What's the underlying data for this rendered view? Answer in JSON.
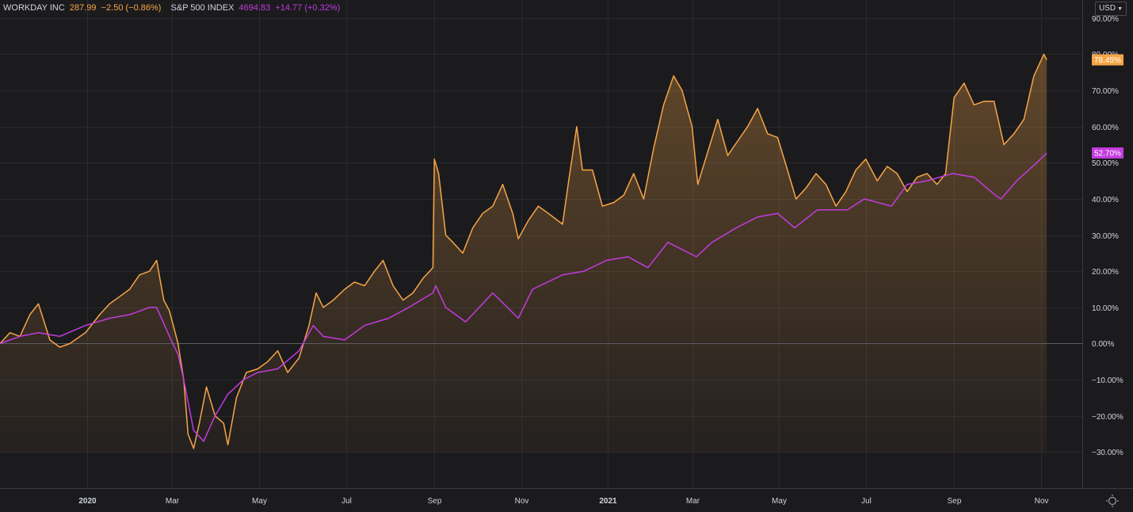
{
  "legend": {
    "symbol1": "WORKDAY INC",
    "price1": "287.99",
    "change1": "−2.50 (−0.86%)",
    "symbol2": "S&P 500 INDEX",
    "price2": "4694.83",
    "change2": "+14.77 (+0.32%)"
  },
  "currency": "USD",
  "colors": {
    "background": "#1b1b1e",
    "grid": "#2a2a2e",
    "workday": "#f7a545",
    "sp500": "#c43bdf",
    "text": "#d1d4dc"
  },
  "chart_data": {
    "type": "line",
    "ylim": [
      -40,
      95
    ],
    "yticks": [
      90,
      80,
      70,
      60,
      50,
      40,
      30,
      20,
      10,
      0,
      -10,
      -20,
      -30
    ],
    "ytick_labels": [
      "90.00%",
      "80.00%",
      "70.00%",
      "60.00%",
      "50.00%",
      "40.00%",
      "30.00%",
      "20.00%",
      "10.00%",
      "0.00%",
      "−10.00%",
      "−20.00%",
      "−30.00%"
    ],
    "xlim": [
      "2019-11-01",
      "2021-11-30"
    ],
    "xticks": [
      {
        "date": "2020-01-01",
        "label": "2020",
        "bold": true
      },
      {
        "date": "2020-03-01",
        "label": "Mar"
      },
      {
        "date": "2020-05-01",
        "label": "May"
      },
      {
        "date": "2020-07-01",
        "label": "Jul"
      },
      {
        "date": "2020-09-01",
        "label": "Sep"
      },
      {
        "date": "2020-11-01",
        "label": "Nov"
      },
      {
        "date": "2021-01-01",
        "label": "2021",
        "bold": true
      },
      {
        "date": "2021-03-01",
        "label": "Mar"
      },
      {
        "date": "2021-05-01",
        "label": "May"
      },
      {
        "date": "2021-07-01",
        "label": "Jul"
      },
      {
        "date": "2021-09-01",
        "label": "Sep"
      },
      {
        "date": "2021-11-01",
        "label": "Nov"
      }
    ],
    "series": [
      {
        "name": "WORKDAY INC",
        "color": "#f7a545",
        "area": true,
        "last_label": "78.45%",
        "points": [
          [
            "2019-11-01",
            0
          ],
          [
            "2019-11-08",
            3
          ],
          [
            "2019-11-15",
            2
          ],
          [
            "2019-11-22",
            8
          ],
          [
            "2019-11-28",
            11
          ],
          [
            "2019-12-06",
            1
          ],
          [
            "2019-12-13",
            -1
          ],
          [
            "2019-12-20",
            0
          ],
          [
            "2019-12-31",
            3
          ],
          [
            "2020-01-10",
            8
          ],
          [
            "2020-01-17",
            11
          ],
          [
            "2020-01-24",
            13
          ],
          [
            "2020-01-31",
            15
          ],
          [
            "2020-02-07",
            19
          ],
          [
            "2020-02-14",
            20
          ],
          [
            "2020-02-19",
            23
          ],
          [
            "2020-02-24",
            12
          ],
          [
            "2020-02-28",
            9
          ],
          [
            "2020-03-05",
            0
          ],
          [
            "2020-03-09",
            -10
          ],
          [
            "2020-03-12",
            -25
          ],
          [
            "2020-03-16",
            -29
          ],
          [
            "2020-03-20",
            -22
          ],
          [
            "2020-03-25",
            -12
          ],
          [
            "2020-03-31",
            -20
          ],
          [
            "2020-04-06",
            -22
          ],
          [
            "2020-04-09",
            -28
          ],
          [
            "2020-04-15",
            -15
          ],
          [
            "2020-04-22",
            -8
          ],
          [
            "2020-04-30",
            -7
          ],
          [
            "2020-05-07",
            -5
          ],
          [
            "2020-05-14",
            -2
          ],
          [
            "2020-05-21",
            -8
          ],
          [
            "2020-05-29",
            -4
          ],
          [
            "2020-06-05",
            5
          ],
          [
            "2020-06-10",
            14
          ],
          [
            "2020-06-15",
            10
          ],
          [
            "2020-06-22",
            12
          ],
          [
            "2020-06-30",
            15
          ],
          [
            "2020-07-07",
            17
          ],
          [
            "2020-07-14",
            16
          ],
          [
            "2020-07-21",
            20
          ],
          [
            "2020-07-27",
            23
          ],
          [
            "2020-08-03",
            16
          ],
          [
            "2020-08-10",
            12
          ],
          [
            "2020-08-17",
            14
          ],
          [
            "2020-08-24",
            18
          ],
          [
            "2020-08-31",
            21
          ],
          [
            "2020-09-01",
            51
          ],
          [
            "2020-09-04",
            47
          ],
          [
            "2020-09-09",
            30
          ],
          [
            "2020-09-14",
            28
          ],
          [
            "2020-09-21",
            25
          ],
          [
            "2020-09-28",
            32
          ],
          [
            "2020-10-05",
            36
          ],
          [
            "2020-10-12",
            38
          ],
          [
            "2020-10-19",
            44
          ],
          [
            "2020-10-26",
            36
          ],
          [
            "2020-10-30",
            29
          ],
          [
            "2020-11-06",
            34
          ],
          [
            "2020-11-13",
            38
          ],
          [
            "2020-11-20",
            36
          ],
          [
            "2020-11-30",
            33
          ],
          [
            "2020-12-04",
            44
          ],
          [
            "2020-12-10",
            60
          ],
          [
            "2020-12-14",
            48
          ],
          [
            "2020-12-21",
            48
          ],
          [
            "2020-12-28",
            38
          ],
          [
            "2021-01-05",
            39
          ],
          [
            "2021-01-12",
            41
          ],
          [
            "2021-01-19",
            47
          ],
          [
            "2021-01-26",
            40
          ],
          [
            "2021-02-02",
            54
          ],
          [
            "2021-02-09",
            66
          ],
          [
            "2021-02-16",
            74
          ],
          [
            "2021-02-22",
            70
          ],
          [
            "2021-03-01",
            60
          ],
          [
            "2021-03-05",
            44
          ],
          [
            "2021-03-12",
            53
          ],
          [
            "2021-03-19",
            62
          ],
          [
            "2021-03-26",
            52
          ],
          [
            "2021-04-02",
            56
          ],
          [
            "2021-04-09",
            60
          ],
          [
            "2021-04-16",
            65
          ],
          [
            "2021-04-23",
            58
          ],
          [
            "2021-04-30",
            57
          ],
          [
            "2021-05-07",
            48
          ],
          [
            "2021-05-13",
            40
          ],
          [
            "2021-05-20",
            43
          ],
          [
            "2021-05-27",
            47
          ],
          [
            "2021-06-03",
            44
          ],
          [
            "2021-06-10",
            38
          ],
          [
            "2021-06-17",
            42
          ],
          [
            "2021-06-24",
            48
          ],
          [
            "2021-07-01",
            51
          ],
          [
            "2021-07-09",
            45
          ],
          [
            "2021-07-16",
            49
          ],
          [
            "2021-07-23",
            47
          ],
          [
            "2021-07-30",
            42
          ],
          [
            "2021-08-06",
            46
          ],
          [
            "2021-08-13",
            47
          ],
          [
            "2021-08-20",
            44
          ],
          [
            "2021-08-26",
            47
          ],
          [
            "2021-09-01",
            68
          ],
          [
            "2021-09-08",
            72
          ],
          [
            "2021-09-15",
            66
          ],
          [
            "2021-09-22",
            67
          ],
          [
            "2021-09-29",
            67
          ],
          [
            "2021-10-06",
            55
          ],
          [
            "2021-10-13",
            58
          ],
          [
            "2021-10-20",
            62
          ],
          [
            "2021-10-27",
            74
          ],
          [
            "2021-11-03",
            80
          ],
          [
            "2021-11-05",
            78.45
          ]
        ]
      },
      {
        "name": "S&P 500 INDEX",
        "color": "#c43bdf",
        "area": false,
        "last_label": "52.70%",
        "points": [
          [
            "2019-11-01",
            0
          ],
          [
            "2019-11-15",
            2
          ],
          [
            "2019-11-28",
            3
          ],
          [
            "2019-12-13",
            2
          ],
          [
            "2019-12-31",
            5
          ],
          [
            "2020-01-17",
            7
          ],
          [
            "2020-01-31",
            8
          ],
          [
            "2020-02-14",
            10
          ],
          [
            "2020-02-19",
            10
          ],
          [
            "2020-02-28",
            2
          ],
          [
            "2020-03-05",
            -3
          ],
          [
            "2020-03-09",
            -10
          ],
          [
            "2020-03-16",
            -24
          ],
          [
            "2020-03-23",
            -27
          ],
          [
            "2020-03-31",
            -20
          ],
          [
            "2020-04-09",
            -14
          ],
          [
            "2020-04-20",
            -10
          ],
          [
            "2020-04-30",
            -8
          ],
          [
            "2020-05-14",
            -7
          ],
          [
            "2020-05-29",
            -2
          ],
          [
            "2020-06-08",
            5
          ],
          [
            "2020-06-15",
            2
          ],
          [
            "2020-06-30",
            1
          ],
          [
            "2020-07-14",
            5
          ],
          [
            "2020-07-31",
            7
          ],
          [
            "2020-08-14",
            10
          ],
          [
            "2020-08-31",
            14
          ],
          [
            "2020-09-02",
            16
          ],
          [
            "2020-09-09",
            10
          ],
          [
            "2020-09-23",
            6
          ],
          [
            "2020-10-12",
            14
          ],
          [
            "2020-10-30",
            7
          ],
          [
            "2020-11-09",
            15
          ],
          [
            "2020-11-30",
            19
          ],
          [
            "2020-12-15",
            20
          ],
          [
            "2020-12-31",
            23
          ],
          [
            "2021-01-15",
            24
          ],
          [
            "2021-01-29",
            21
          ],
          [
            "2021-02-12",
            28
          ],
          [
            "2021-03-04",
            24
          ],
          [
            "2021-03-15",
            28
          ],
          [
            "2021-04-01",
            32
          ],
          [
            "2021-04-16",
            35
          ],
          [
            "2021-04-30",
            36
          ],
          [
            "2021-05-12",
            32
          ],
          [
            "2021-05-28",
            37
          ],
          [
            "2021-06-18",
            37
          ],
          [
            "2021-06-30",
            40
          ],
          [
            "2021-07-19",
            38
          ],
          [
            "2021-07-30",
            44
          ],
          [
            "2021-08-13",
            45
          ],
          [
            "2021-08-31",
            47
          ],
          [
            "2021-09-15",
            46
          ],
          [
            "2021-09-30",
            41
          ],
          [
            "2021-10-04",
            40
          ],
          [
            "2021-10-15",
            45
          ],
          [
            "2021-10-29",
            50
          ],
          [
            "2021-11-05",
            52.7
          ]
        ]
      }
    ]
  }
}
